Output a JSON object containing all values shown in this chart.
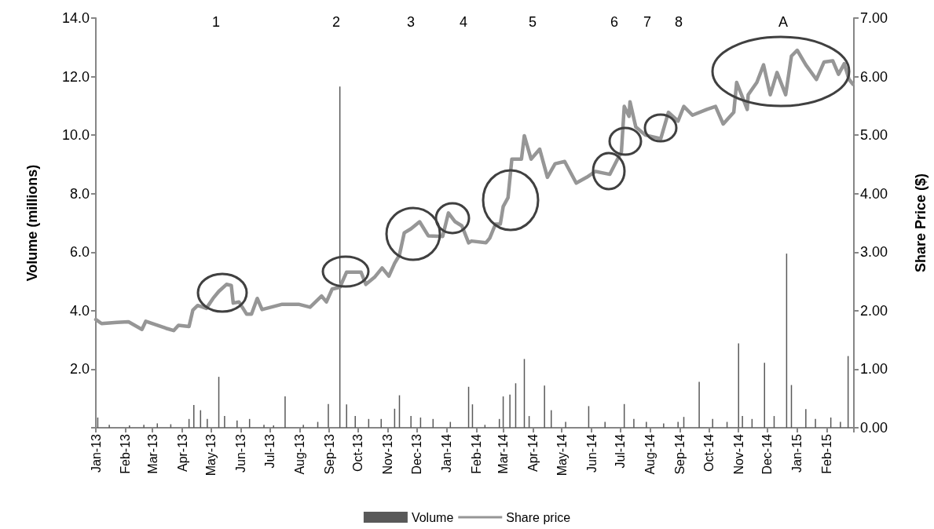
{
  "chart_data": {
    "type": "bar",
    "ylabel": "Volume (millions)",
    "y2label": "Share Price ($)",
    "xlim": [
      "2013-01-01",
      "2015-03-01"
    ],
    "xticks": [
      {
        "value": "2013-01-01",
        "label": "Jan-13"
      },
      {
        "value": "2013-02-01",
        "label": "Feb-13"
      },
      {
        "value": "2013-03-01",
        "label": "Mar-13"
      },
      {
        "value": "2013-04-01",
        "label": "Apr-13"
      },
      {
        "value": "2013-05-01",
        "label": "May-13"
      },
      {
        "value": "2013-06-01",
        "label": "Jun-13"
      },
      {
        "value": "2013-07-01",
        "label": "Jul-13"
      },
      {
        "value": "2013-08-01",
        "label": "Aug-13"
      },
      {
        "value": "2013-09-01",
        "label": "Sep-13"
      },
      {
        "value": "2013-10-01",
        "label": "Oct-13"
      },
      {
        "value": "2013-11-01",
        "label": "Nov-13"
      },
      {
        "value": "2013-12-01",
        "label": "Dec-13"
      },
      {
        "value": "2014-01-01",
        "label": "Jan-14"
      },
      {
        "value": "2014-02-01",
        "label": "Feb-14"
      },
      {
        "value": "2014-03-01",
        "label": "Mar-14"
      },
      {
        "value": "2014-04-01",
        "label": "Apr-14"
      },
      {
        "value": "2014-05-01",
        "label": "May-14"
      },
      {
        "value": "2014-06-01",
        "label": "Jun-14"
      },
      {
        "value": "2014-07-01",
        "label": "Jul-14"
      },
      {
        "value": "2014-08-01",
        "label": "Aug-14"
      },
      {
        "value": "2014-09-01",
        "label": "Sep-14"
      },
      {
        "value": "2014-10-01",
        "label": "Oct-14"
      },
      {
        "value": "2014-11-01",
        "label": "Nov-14"
      },
      {
        "value": "2014-12-01",
        "label": "Dec-14"
      },
      {
        "value": "2015-01-01",
        "label": "Jan-15"
      },
      {
        "value": "2015-02-01",
        "label": "Feb-15"
      },
      {
        "value": "2015-03-01",
        "label": null
      }
    ],
    "ylim": [
      0,
      14
    ],
    "yticks": [
      {
        "value": 0,
        "label": null
      },
      {
        "value": 2,
        "label": "2.0"
      },
      {
        "value": 4,
        "label": "4.0"
      },
      {
        "value": 6,
        "label": "6.0"
      },
      {
        "value": 8,
        "label": "8.0"
      },
      {
        "value": 10,
        "label": "10.0"
      },
      {
        "value": 12,
        "label": "12.0"
      },
      {
        "value": 14,
        "label": "14.0"
      }
    ],
    "y2lim": [
      0,
      7
    ],
    "y2ticks": [
      {
        "value": 0,
        "label": "0.00"
      },
      {
        "value": 1,
        "label": "1.00"
      },
      {
        "value": 2,
        "label": "2.00"
      },
      {
        "value": 3,
        "label": "3.00"
      },
      {
        "value": 4,
        "label": "4.00"
      },
      {
        "value": 5,
        "label": "5.00"
      },
      {
        "value": 6,
        "label": "6.00"
      },
      {
        "value": 7,
        "label": "7.00"
      }
    ],
    "grid": false,
    "legend": "bottom",
    "series": [
      {
        "name": "Volume",
        "color": "#595959",
        "x": [
          "2013-01-03",
          "2013-01-15",
          "2013-02-05",
          "2013-02-20",
          "2013-03-06",
          "2013-03-20",
          "2013-04-08",
          "2013-04-13",
          "2013-04-20",
          "2013-04-27",
          "2013-05-09",
          "2013-05-15",
          "2013-05-28",
          "2013-06-10",
          "2013-06-25",
          "2013-07-05",
          "2013-07-17",
          "2013-08-05",
          "2013-08-20",
          "2013-08-31",
          "2013-09-12",
          "2013-09-19",
          "2013-09-28",
          "2013-10-12",
          "2013-10-25",
          "2013-11-08",
          "2013-11-13",
          "2013-11-25",
          "2013-12-05",
          "2013-12-18",
          "2014-01-05",
          "2014-01-24",
          "2014-01-28",
          "2014-02-10",
          "2014-02-25",
          "2014-03-01",
          "2014-03-08",
          "2014-03-14",
          "2014-03-23",
          "2014-03-28",
          "2014-04-13",
          "2014-04-20",
          "2014-05-05",
          "2014-05-29",
          "2014-06-15",
          "2014-07-05",
          "2014-07-15",
          "2014-07-28",
          "2014-08-15",
          "2014-08-30",
          "2014-09-05",
          "2014-09-21",
          "2014-10-05",
          "2014-10-20",
          "2014-11-01",
          "2014-11-05",
          "2014-11-15",
          "2014-11-28",
          "2014-12-08",
          "2014-12-21",
          "2014-12-26",
          "2015-01-10",
          "2015-01-20",
          "2015-02-05",
          "2015-02-15",
          "2015-02-23"
        ],
        "values": [
          0.35,
          0.1,
          0.08,
          0.1,
          0.15,
          0.12,
          0.3,
          0.78,
          0.6,
          0.3,
          1.74,
          0.4,
          0.25,
          0.3,
          0.1,
          0.08,
          1.07,
          0.1,
          0.2,
          0.81,
          11.66,
          0.8,
          0.4,
          0.3,
          0.3,
          0.65,
          1.11,
          0.4,
          0.35,
          0.3,
          0.2,
          1.4,
          0.8,
          0.1,
          0.3,
          1.07,
          1.13,
          1.52,
          2.35,
          0.4,
          1.44,
          0.6,
          0.2,
          0.74,
          0.2,
          0.81,
          0.3,
          0.2,
          0.15,
          0.2,
          0.37,
          1.57,
          0.3,
          0.2,
          2.88,
          0.4,
          0.3,
          2.22,
          0.4,
          5.95,
          1.46,
          0.64,
          0.3,
          0.35,
          0.2,
          2.45
        ]
      },
      {
        "name": "Share price",
        "type": "line",
        "axis": "y2",
        "color": "#969696",
        "marker": "none",
        "line_style": "solid",
        "x": [
          "2013-01-01",
          "2013-01-07",
          "2013-01-23",
          "2013-02-04",
          "2013-02-18",
          "2013-02-22",
          "2013-03-15",
          "2013-03-23",
          "2013-03-28",
          "2013-04-08",
          "2013-04-12",
          "2013-04-17",
          "2013-04-26",
          "2013-05-03",
          "2013-05-09",
          "2013-05-17",
          "2013-05-22",
          "2013-05-24",
          "2013-05-30",
          "2013-06-07",
          "2013-06-12",
          "2013-06-18",
          "2013-06-23",
          "2013-07-14",
          "2013-07-31",
          "2013-08-12",
          "2013-08-24",
          "2013-08-29",
          "2013-09-04",
          "2013-09-12",
          "2013-09-19",
          "2013-10-04",
          "2013-10-09",
          "2013-10-18",
          "2013-10-26",
          "2013-11-02",
          "2013-11-08",
          "2013-11-13",
          "2013-11-18",
          "2013-11-25",
          "2013-12-04",
          "2013-12-13",
          "2013-12-28",
          "2014-01-03",
          "2014-01-10",
          "2014-01-17",
          "2014-01-24",
          "2014-01-27",
          "2014-02-11",
          "2014-02-15",
          "2014-02-21",
          "2014-02-26",
          "2014-03-01",
          "2014-03-06",
          "2014-03-10",
          "2014-03-20",
          "2014-03-23",
          "2014-03-30",
          "2014-04-08",
          "2014-04-16",
          "2014-04-24",
          "2014-05-04",
          "2014-05-16",
          "2014-05-27",
          "2014-06-05",
          "2014-06-20",
          "2014-06-28",
          "2014-07-02",
          "2014-07-05",
          "2014-07-10",
          "2014-07-11",
          "2014-07-17",
          "2014-07-27",
          "2014-08-12",
          "2014-08-20",
          "2014-08-30",
          "2014-09-05",
          "2014-09-14",
          "2014-09-29",
          "2014-10-08",
          "2014-10-16",
          "2014-10-27",
          "2014-10-30",
          "2014-11-10",
          "2014-11-11",
          "2014-11-20",
          "2014-11-27",
          "2014-12-04",
          "2014-12-11",
          "2014-12-20",
          "2014-12-26",
          "2015-01-01",
          "2015-01-10",
          "2015-01-21",
          "2015-01-29",
          "2015-02-07",
          "2015-02-13",
          "2015-02-19",
          "2015-02-24",
          "2015-02-28"
        ],
        "values": [
          1.85,
          1.78,
          1.8,
          1.81,
          1.68,
          1.82,
          1.7,
          1.66,
          1.75,
          1.73,
          2.01,
          2.09,
          2.04,
          2.21,
          2.33,
          2.45,
          2.43,
          2.13,
          2.15,
          1.94,
          1.94,
          2.21,
          2.02,
          2.11,
          2.11,
          2.06,
          2.25,
          2.15,
          2.37,
          2.4,
          2.66,
          2.66,
          2.45,
          2.57,
          2.73,
          2.59,
          2.81,
          2.95,
          3.33,
          3.4,
          3.52,
          3.28,
          3.27,
          3.67,
          3.52,
          3.45,
          3.16,
          3.19,
          3.16,
          3.24,
          3.48,
          3.48,
          3.78,
          3.93,
          4.59,
          4.59,
          4.99,
          4.59,
          4.76,
          4.28,
          4.51,
          4.55,
          4.18,
          4.28,
          4.38,
          4.33,
          4.59,
          4.71,
          5.49,
          5.32,
          5.57,
          5.14,
          5.0,
          4.94,
          5.39,
          5.24,
          5.49,
          5.34,
          5.44,
          5.49,
          5.19,
          5.39,
          5.9,
          5.44,
          5.69,
          5.9,
          6.2,
          5.69,
          6.07,
          5.69,
          6.35,
          6.45,
          6.2,
          5.95,
          6.25,
          6.27,
          6.04,
          6.22,
          5.95,
          5.87
        ]
      }
    ],
    "annotations": [
      "1",
      "2",
      "3",
      "4",
      "5",
      "6",
      "7",
      "8",
      "A"
    ]
  }
}
